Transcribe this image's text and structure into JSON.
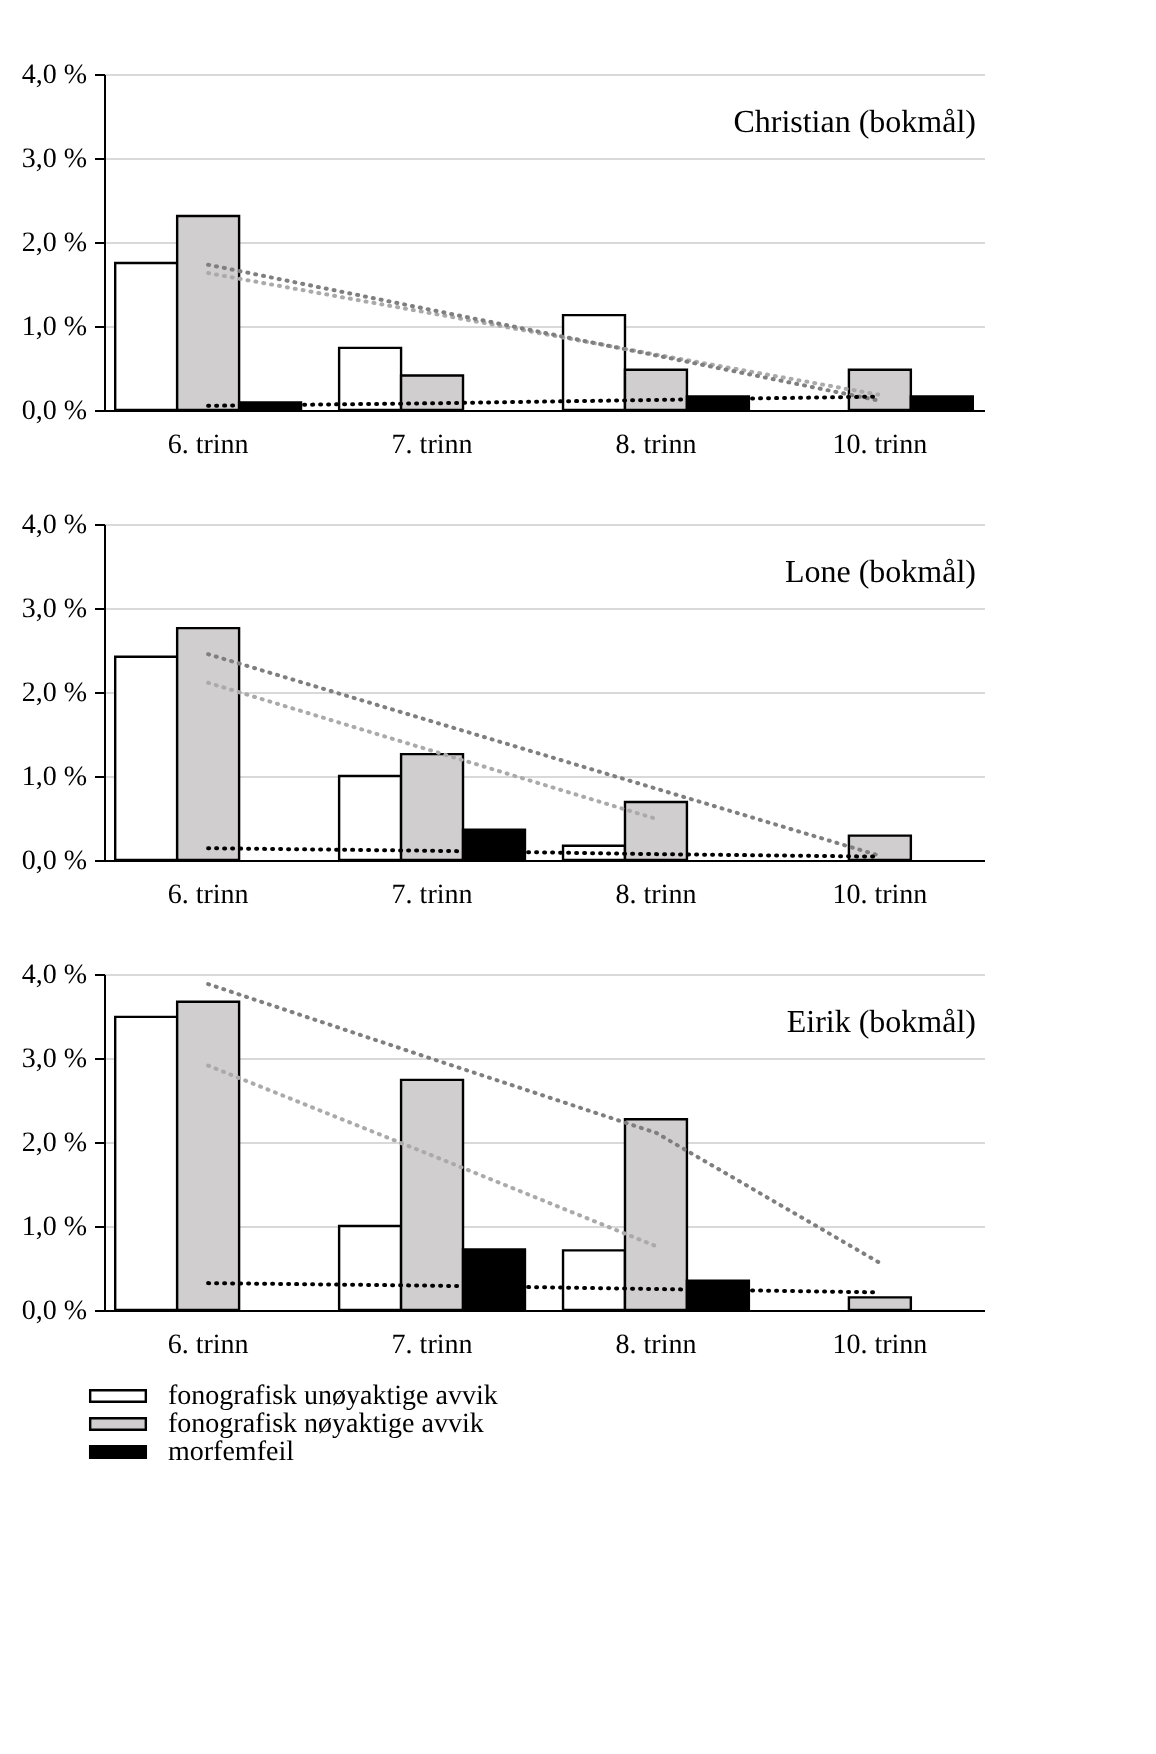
{
  "chart_data": [
    {
      "type": "bar",
      "title": "Christian (bokmål)",
      "categories": [
        "6. trinn",
        "7. trinn",
        "8. trinn",
        "10. trinn"
      ],
      "ylim": [
        0,
        4
      ],
      "yticks": [
        {
          "value": 0,
          "label": "0,0 %"
        },
        {
          "value": 1,
          "label": "1,0 %"
        },
        {
          "value": 2,
          "label": "2,0 %"
        },
        {
          "value": 3,
          "label": "3,0 %"
        },
        {
          "value": 4,
          "label": "4,0 %"
        }
      ],
      "grid": "y",
      "series": [
        {
          "color": "#ffffff",
          "values": [
            1.75,
            0.74,
            1.13,
            0
          ]
        },
        {
          "color": "#d0cece",
          "values": [
            2.31,
            0.41,
            0.48,
            0.48
          ]
        },
        {
          "color": "#000000",
          "values": [
            0.09,
            0,
            0.16,
            0.16
          ]
        },
        {
          "type": "line",
          "color": "#aaaaaa",
          "line_style": "dotted",
          "values": [
            1.63,
            1.15,
            0.66,
            0.18
          ]
        },
        {
          "type": "line",
          "color": "#7f7f7f",
          "line_style": "dotted",
          "values": [
            1.73,
            1.19,
            0.65,
            0.11
          ]
        },
        {
          "type": "line",
          "color": "#000000",
          "line_style": "dotted",
          "values": [
            0.05,
            0.08,
            0.12,
            0.16
          ]
        }
      ]
    },
    {
      "type": "bar",
      "title": "Lone (bokmål)",
      "categories": [
        "6. trinn",
        "7. trinn",
        "8. trinn",
        "10. trinn"
      ],
      "ylim": [
        0,
        4
      ],
      "yticks": [
        {
          "value": 0,
          "label": "0,0 %"
        },
        {
          "value": 1,
          "label": "1,0 %"
        },
        {
          "value": 2,
          "label": "2,0 %"
        },
        {
          "value": 3,
          "label": "3,0 %"
        },
        {
          "value": 4,
          "label": "4,0 %"
        }
      ],
      "grid": "y",
      "series": [
        {
          "color": "#ffffff",
          "values": [
            2.42,
            1.0,
            0.17,
            0
          ]
        },
        {
          "color": "#d0cece",
          "values": [
            2.76,
            1.26,
            0.69,
            0.29
          ]
        },
        {
          "color": "#000000",
          "values": [
            0,
            0.36,
            0,
            0
          ]
        },
        {
          "type": "line",
          "color": "#aaaaaa",
          "line_style": "dotted",
          "values": [
            2.11,
            1.3,
            0.49,
            null
          ]
        },
        {
          "type": "line",
          "color": "#7f7f7f",
          "line_style": "dotted",
          "values": [
            2.45,
            1.65,
            0.85,
            0.05
          ]
        },
        {
          "type": "line",
          "color": "#000000",
          "line_style": "dotted",
          "values": [
            0.14,
            0.11,
            0.07,
            0.04
          ]
        }
      ]
    },
    {
      "type": "bar",
      "title": "Eirik (bokmål)",
      "categories": [
        "6. trinn",
        "7. trinn",
        "8. trinn",
        "10. trinn"
      ],
      "ylim": [
        0,
        4
      ],
      "yticks": [
        {
          "value": 0,
          "label": "0,0 %"
        },
        {
          "value": 1,
          "label": "1,0 %"
        },
        {
          "value": 2,
          "label": "2,0 %"
        },
        {
          "value": 3,
          "label": "3,0 %"
        },
        {
          "value": 4,
          "label": "4,0 %"
        }
      ],
      "grid": "y",
      "legend": "bottom",
      "series": [
        {
          "name": "fonografisk unøyaktige avvik",
          "color": "#ffffff",
          "values": [
            3.49,
            1.0,
            0.71,
            0
          ]
        },
        {
          "name": "fonografisk nøyaktige avvik",
          "color": "#d0cece",
          "values": [
            3.67,
            2.74,
            2.27,
            0.15
          ]
        },
        {
          "name": "morfemfeil",
          "color": "#000000",
          "values": [
            0,
            0.72,
            0.35,
            0
          ]
        },
        {
          "type": "line",
          "color": "#aaaaaa",
          "line_style": "dotted",
          "values": [
            2.91,
            1.84,
            0.76,
            null
          ]
        },
        {
          "type": "line",
          "color": "#7f7f7f",
          "line_style": "dotted",
          "values": [
            3.88,
            2.99,
            2.11,
            0.56
          ]
        },
        {
          "type": "line",
          "color": "#000000",
          "line_style": "dotted",
          "values": [
            0.32,
            0.29,
            0.25,
            0.21
          ]
        }
      ]
    }
  ]
}
